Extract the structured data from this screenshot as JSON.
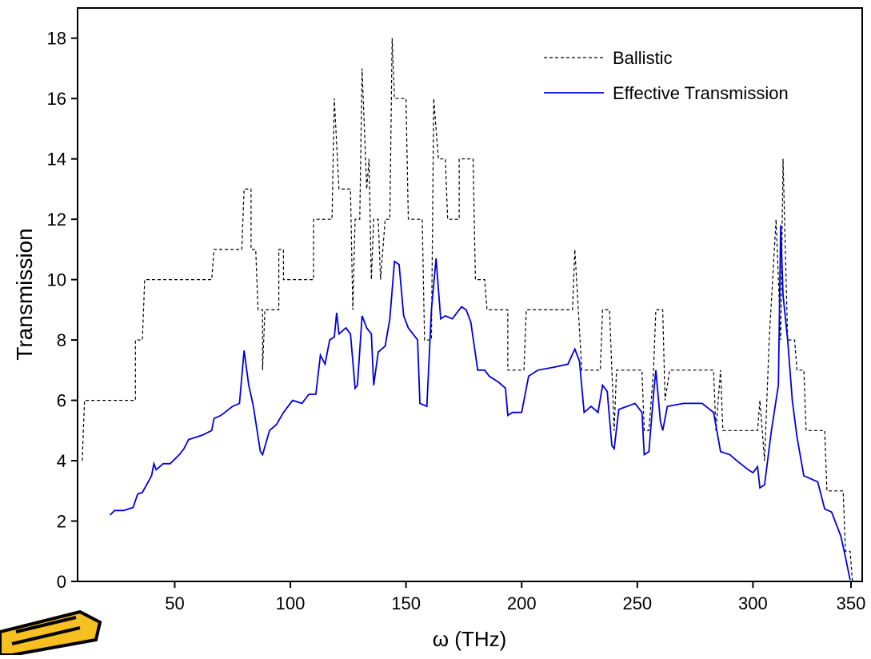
{
  "chart_data": {
    "type": "line",
    "xlabel": "ω (THz)",
    "ylabel": "Transmission",
    "xlim": [
      8,
      350
    ],
    "ylim": [
      0,
      19
    ],
    "xticks": [
      50,
      100,
      150,
      200,
      250,
      300,
      350
    ],
    "yticks": [
      0,
      2,
      4,
      6,
      8,
      10,
      12,
      14,
      16,
      18
    ],
    "legend": "upper right",
    "series": [
      {
        "name": "Ballistic",
        "color": "#000000",
        "dash": true,
        "x": [
          10,
          11,
          33,
          33,
          36,
          37,
          66,
          67,
          79,
          80,
          83,
          83,
          85,
          86,
          88,
          88,
          89,
          95,
          95,
          97,
          97,
          110,
          110,
          118,
          119,
          121,
          126,
          127,
          128,
          130,
          131,
          133,
          134,
          135,
          136,
          138,
          139,
          141,
          143,
          144,
          145,
          150,
          151,
          157,
          158,
          161,
          162,
          164,
          167,
          168,
          173,
          173,
          179,
          180,
          184,
          185,
          194,
          194,
          201,
          202,
          222,
          223,
          226,
          234,
          235,
          238,
          239,
          240,
          241,
          252,
          253,
          255,
          257,
          258,
          261,
          262,
          264,
          283,
          284,
          286,
          287,
          302,
          303,
          305,
          307,
          310,
          312,
          313,
          315,
          318,
          319,
          322,
          323,
          331,
          332,
          339,
          340,
          342,
          343
        ],
        "values": [
          4,
          6,
          6,
          8,
          8,
          10,
          10,
          11,
          11,
          13,
          13,
          11,
          11,
          9,
          9,
          7,
          9,
          9,
          11,
          11,
          10,
          10,
          12,
          12,
          16,
          13,
          13,
          9,
          12,
          12,
          17,
          13,
          14,
          10,
          12,
          12,
          10,
          12,
          12,
          18,
          16,
          16,
          12,
          12,
          8,
          8,
          16,
          14,
          14,
          12,
          12,
          14,
          14,
          10,
          10,
          9,
          9,
          7,
          7,
          9,
          9,
          11,
          7,
          7,
          9,
          9,
          7,
          5,
          7,
          7,
          5,
          5,
          7,
          9,
          9,
          6,
          7,
          7,
          5,
          7,
          5,
          5,
          6,
          4,
          8,
          12,
          8,
          14,
          8,
          8,
          7,
          7,
          5,
          5,
          3,
          3,
          1,
          1,
          0
        ]
      },
      {
        "name": "Effective Transmission",
        "color": "#0000e0",
        "dash": false,
        "x": [
          22,
          24,
          28,
          32,
          34,
          36,
          40,
          41,
          42,
          45,
          48,
          52,
          54,
          56,
          62,
          66,
          67,
          70,
          75,
          78,
          80,
          82,
          84,
          87,
          88,
          91,
          94,
          97,
          101,
          105,
          108,
          111,
          113,
          115,
          117,
          119,
          120,
          121,
          124,
          126,
          128,
          129,
          131,
          133,
          135,
          136,
          138,
          141,
          143,
          145,
          147,
          149,
          151,
          155,
          156,
          159,
          161,
          163,
          165,
          167,
          170,
          174,
          176,
          178,
          181,
          184,
          186,
          190,
          193,
          194,
          196,
          200,
          203,
          207,
          214,
          220,
          223,
          225,
          227,
          230,
          233,
          235,
          237,
          239,
          240,
          242,
          249,
          252,
          253,
          255,
          257,
          258,
          260,
          261,
          263,
          270,
          278,
          283,
          286,
          290,
          293,
          298,
          300,
          302,
          303,
          305,
          308,
          311,
          312,
          313,
          315,
          317,
          319,
          322,
          325,
          328,
          331,
          334,
          338,
          340,
          342
        ],
        "values": [
          2.2,
          2.35,
          2.35,
          2.45,
          2.9,
          2.95,
          3.5,
          3.9,
          3.7,
          3.9,
          3.9,
          4.2,
          4.4,
          4.7,
          4.85,
          5.0,
          5.4,
          5.5,
          5.8,
          5.9,
          7.65,
          6.5,
          5.8,
          4.3,
          4.2,
          5.0,
          5.2,
          5.6,
          6.0,
          5.9,
          6.2,
          6.2,
          7.5,
          7.2,
          8.0,
          8.1,
          8.9,
          8.2,
          8.4,
          8.2,
          6.4,
          6.5,
          8.8,
          8.4,
          8.2,
          6.5,
          7.6,
          7.8,
          8.7,
          10.6,
          10.5,
          8.8,
          8.4,
          8.0,
          5.9,
          5.8,
          9.0,
          10.7,
          8.7,
          8.8,
          8.7,
          9.1,
          9.0,
          8.6,
          7.0,
          7.0,
          6.8,
          6.6,
          6.4,
          5.5,
          5.6,
          5.6,
          6.8,
          7.0,
          7.1,
          7.2,
          7.7,
          7.3,
          5.6,
          5.8,
          5.6,
          6.5,
          6.3,
          4.5,
          4.4,
          5.7,
          5.9,
          5.6,
          4.2,
          4.3,
          6.2,
          7.0,
          5.3,
          5.0,
          5.8,
          5.9,
          5.9,
          5.6,
          4.3,
          4.2,
          4.0,
          3.7,
          3.6,
          3.8,
          3.1,
          3.2,
          5.0,
          6.5,
          11.8,
          9.5,
          8.0,
          6.0,
          4.8,
          3.5,
          3.4,
          3.3,
          2.4,
          2.3,
          1.5,
          0.8,
          0.05
        ]
      }
    ]
  }
}
